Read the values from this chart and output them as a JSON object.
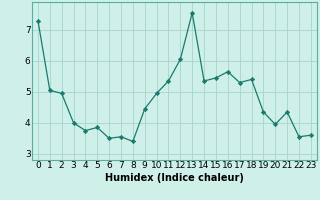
{
  "x": [
    0,
    1,
    2,
    3,
    4,
    5,
    6,
    7,
    8,
    9,
    10,
    11,
    12,
    13,
    14,
    15,
    16,
    17,
    18,
    19,
    20,
    21,
    22,
    23
  ],
  "y": [
    7.3,
    5.05,
    4.95,
    4.0,
    3.75,
    3.85,
    3.5,
    3.55,
    3.4,
    4.45,
    4.95,
    5.35,
    6.05,
    7.55,
    5.35,
    5.45,
    5.65,
    5.3,
    5.4,
    4.35,
    3.95,
    4.35,
    3.55,
    3.6
  ],
  "line_color": "#1a7a6e",
  "marker": "D",
  "marker_size": 2.2,
  "bg_color": "#cef0e8",
  "grid_color": "#aad8d0",
  "xlabel": "Humidex (Indice chaleur)",
  "ylim": [
    2.8,
    7.9
  ],
  "xlim": [
    -0.5,
    23.5
  ],
  "yticks": [
    3,
    4,
    5,
    6,
    7
  ],
  "xticks": [
    0,
    1,
    2,
    3,
    4,
    5,
    6,
    7,
    8,
    9,
    10,
    11,
    12,
    13,
    14,
    15,
    16,
    17,
    18,
    19,
    20,
    21,
    22,
    23
  ],
  "xlabel_fontsize": 7,
  "tick_fontsize": 6.5,
  "spine_color": "#5aada0"
}
